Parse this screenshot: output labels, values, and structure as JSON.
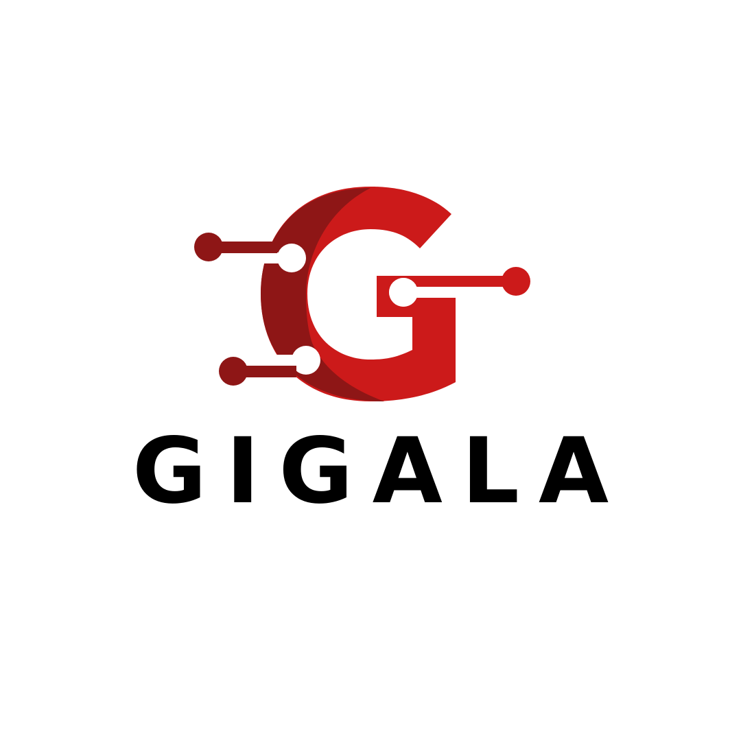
{
  "brand": {
    "name": "GIGALA",
    "colors": {
      "primary_red": "#cc1a1a",
      "dark_red": "#8e1616",
      "text": "#000000",
      "background": "#ffffff"
    }
  },
  "logo": {
    "icon": "circuit-g-icon"
  }
}
